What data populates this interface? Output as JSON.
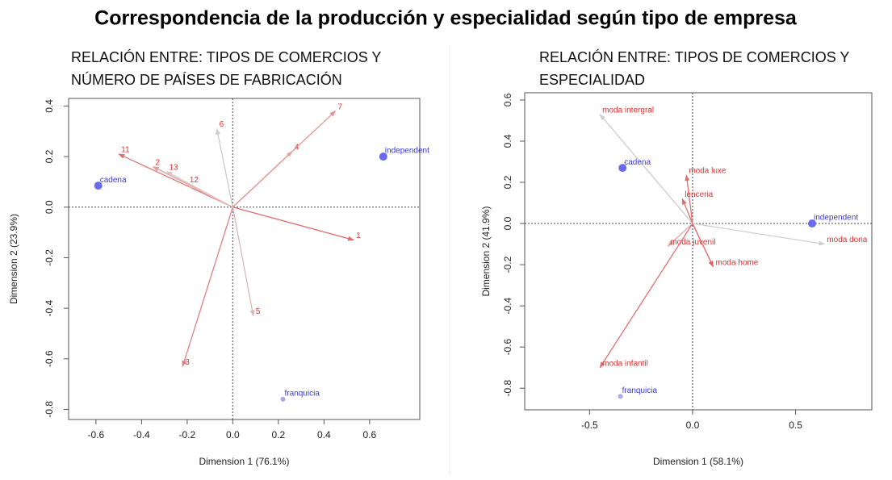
{
  "title": "Correspondencia de la producción y especialidad según tipo de empresa",
  "chart_data": [
    {
      "type": "scatter",
      "title_lines": [
        "RELACIÓN ENTRE: TIPOS DE COMERCIOS Y",
        "NÚMERO DE PAÍSES DE FABRICACIÓN"
      ],
      "x_label": "Dimension 1 (76.1%)",
      "y_label": "Dimension 2 (23.9%)",
      "xlim": [
        -0.72,
        0.82
      ],
      "ylim": [
        -0.84,
        0.43
      ],
      "xticks": [
        -0.6,
        -0.4,
        -0.2,
        {
          "value": 0,
          "label": "0.0"
        },
        0.2,
        0.4,
        0.6
      ],
      "yticks": [
        -0.8,
        -0.6,
        -0.4,
        -0.2,
        {
          "value": 0,
          "label": "0.0"
        },
        0.2,
        0.4
      ],
      "points": [
        {
          "label": "cadena",
          "x": -0.59,
          "y": 0.085,
          "color": "#6a6af0"
        },
        {
          "label": "independent",
          "x": 0.66,
          "y": 0.2,
          "color": "#6a6af0"
        },
        {
          "label": "franquicia",
          "x": 0.22,
          "y": -0.76,
          "color": "#a8a8f0"
        }
      ],
      "arrows": [
        {
          "label": "1",
          "x": 0.53,
          "y": -0.13,
          "color": "#e06a6a"
        },
        {
          "label": "2",
          "x": -0.35,
          "y": 0.16,
          "color": "#d8a0a0"
        },
        {
          "label": "3",
          "x": -0.22,
          "y": -0.63,
          "color": "#e08080"
        },
        {
          "label": "4",
          "x": 0.26,
          "y": 0.22,
          "color": "#eab0b0"
        },
        {
          "label": "5",
          "x": 0.09,
          "y": -0.43,
          "color": "#d8b8b8"
        },
        {
          "label": "6",
          "x": -0.07,
          "y": 0.31,
          "color": "#cccccc"
        },
        {
          "label": "7",
          "x": 0.45,
          "y": 0.38,
          "color": "#e89090"
        },
        {
          "label": "11",
          "x": -0.5,
          "y": 0.21,
          "color": "#e07070"
        },
        {
          "label": "12",
          "x": -0.2,
          "y": 0.09,
          "color": "#e8b8b8"
        },
        {
          "label": "13",
          "x": -0.29,
          "y": 0.14,
          "color": "#e0c0c0"
        }
      ]
    },
    {
      "type": "scatter",
      "title_lines": [
        "RELACIÓN ENTRE: TIPOS DE COMERCIOS Y",
        "ESPECIALIDAD"
      ],
      "x_label": "Dimension 1 (58.1%)",
      "y_label": "Dimension 2 (41.9%)",
      "xlim": [
        -0.815,
        0.87
      ],
      "ylim": [
        -0.905,
        0.635
      ],
      "xticks": [
        -0.5,
        {
          "value": 0,
          "label": "0.0"
        },
        0.5
      ],
      "yticks": [
        -0.8,
        -0.6,
        -0.4,
        -0.2,
        {
          "value": 0,
          "label": "0.0"
        },
        0.2,
        0.4,
        0.6
      ],
      "points": [
        {
          "label": "cadena",
          "x": -0.34,
          "y": 0.27,
          "color": "#6a6af0"
        },
        {
          "label": "independent",
          "x": 0.58,
          "y": 0.0,
          "color": "#6a6af0"
        },
        {
          "label": "franquicia",
          "x": -0.35,
          "y": -0.84,
          "color": "#a8a8f0"
        }
      ],
      "arrows": [
        {
          "label": "moda intergral",
          "x": -0.45,
          "y": 0.53,
          "color": "#cccccc"
        },
        {
          "label": "moda luxe",
          "x": -0.03,
          "y": 0.235,
          "color": "#e07070"
        },
        {
          "label": "lenceria",
          "x": -0.05,
          "y": 0.12,
          "color": "#e07070"
        },
        {
          "label": "moda juvenil",
          "x": -0.12,
          "y": -0.11,
          "color": "#e8a0a0"
        },
        {
          "label": "moda home",
          "x": 0.1,
          "y": -0.21,
          "color": "#e06060"
        },
        {
          "label": "moda dona",
          "x": 0.64,
          "y": -0.1,
          "color": "#d0d0d0"
        },
        {
          "label": "moda infantil",
          "x": -0.45,
          "y": -0.7,
          "color": "#e07070"
        }
      ]
    }
  ]
}
